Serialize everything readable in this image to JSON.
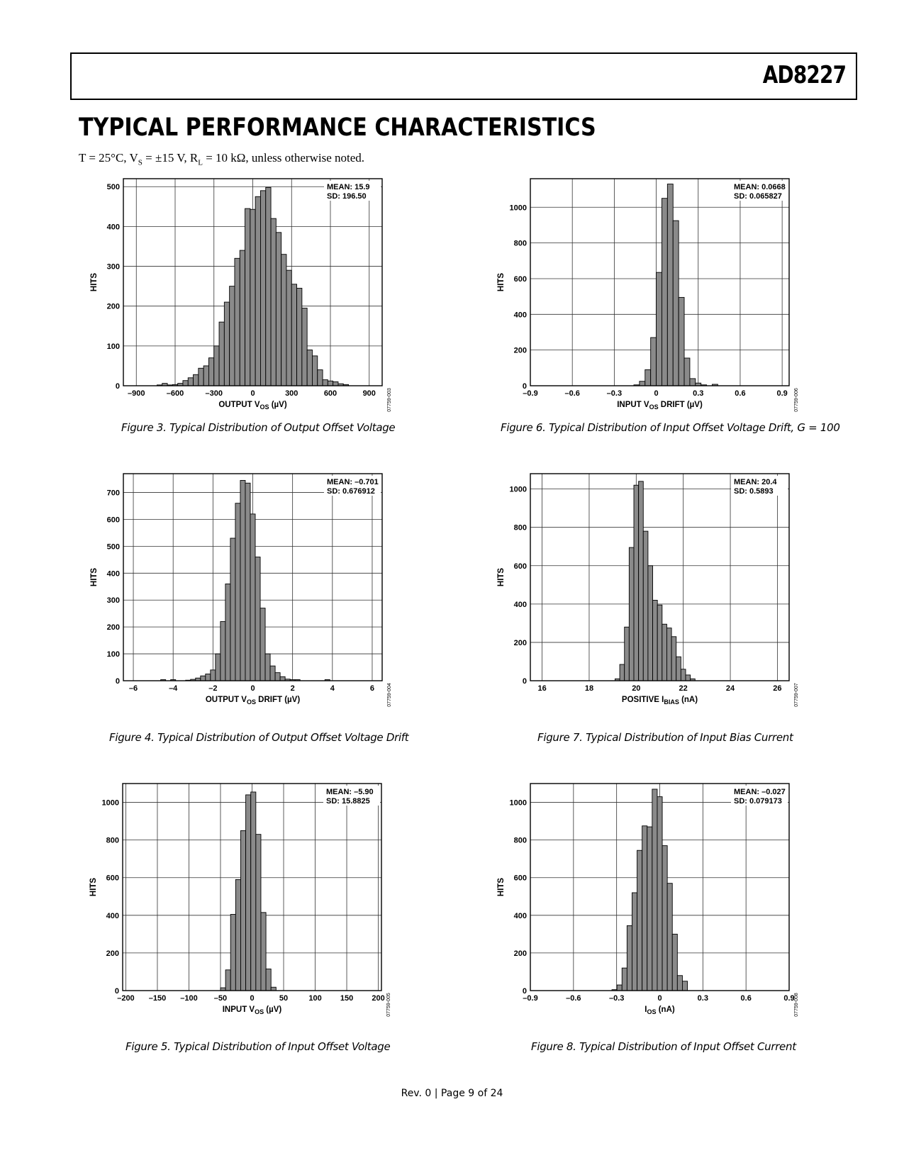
{
  "header": {
    "part_number": "AD8227"
  },
  "section_title": "TYPICAL PERFORMANCE CHARACTERISTICS",
  "conditions": {
    "t": "T = 25°C, V",
    "vs_sub": "S",
    "vs_val": " = ±15 V, R",
    "rl_sub": "L",
    "rl_val": " = 10 kΩ, unless otherwise noted."
  },
  "footer": "Rev. 0 | Page 9 of 24",
  "chart_data": [
    {
      "id": "fig3",
      "type": "bar",
      "caption": "Figure 3. Typical Distribution of Output Offset Voltage",
      "xlabel_main": "OUTPUT V",
      "xlabel_sub": "OS",
      "xlabel_tail": " (µV)",
      "ylabel": "HITS",
      "xlim": [
        -1000,
        1000
      ],
      "ylim": [
        0,
        520
      ],
      "xticks": [
        -900,
        -600,
        -300,
        0,
        300,
        600,
        900
      ],
      "xtick_labels": [
        "–900",
        "–600",
        "–300",
        "0",
        "300",
        "600",
        "900"
      ],
      "yticks": [
        0,
        100,
        200,
        300,
        400,
        500
      ],
      "ytick_labels": [
        "0",
        "100",
        "200",
        "300",
        "400",
        "500"
      ],
      "mean_label": "MEAN: 15.9",
      "sd_label": "SD: 196.50",
      "code": "07759-003",
      "bin_width": 40,
      "bin_centers": [
        -720,
        -680,
        -640,
        -600,
        -560,
        -520,
        -480,
        -440,
        -400,
        -360,
        -320,
        -280,
        -240,
        -200,
        -160,
        -120,
        -80,
        -40,
        0,
        40,
        80,
        120,
        160,
        200,
        240,
        280,
        320,
        360,
        400,
        440,
        480,
        520,
        560,
        600,
        640,
        680,
        720
      ],
      "values": [
        2,
        6,
        2,
        3,
        6,
        13,
        20,
        28,
        44,
        50,
        70,
        100,
        160,
        210,
        250,
        320,
        340,
        445,
        443,
        475,
        490,
        498,
        420,
        385,
        330,
        290,
        255,
        245,
        195,
        90,
        75,
        40,
        15,
        12,
        10,
        5,
        3
      ]
    },
    {
      "id": "fig4",
      "type": "bar",
      "caption": "Figure 4. Typical Distribution of Output Offset Voltage Drift",
      "xlabel_main": "OUTPUT V",
      "xlabel_sub": "OS",
      "xlabel_tail": " DRIFT (µV)",
      "ylabel": "HITS",
      "xlim": [
        -6.5,
        6.5
      ],
      "ylim": [
        0,
        770
      ],
      "xticks": [
        -6,
        -4,
        -2,
        0,
        2,
        4,
        6
      ],
      "xtick_labels": [
        "–6",
        "–4",
        "–2",
        "0",
        "2",
        "4",
        "6"
      ],
      "yticks": [
        0,
        100,
        200,
        300,
        400,
        500,
        600,
        700
      ],
      "ytick_labels": [
        "0",
        "100",
        "200",
        "300",
        "400",
        "500",
        "600",
        "700"
      ],
      "mean_label": "MEAN: –0.701",
      "sd_label": "SD: 0.676912",
      "code": "07759-004",
      "bin_width": 0.25,
      "bin_centers": [
        -4.5,
        -4.0,
        -3.25,
        -3.0,
        -2.75,
        -2.5,
        -2.25,
        -2.0,
        -1.75,
        -1.5,
        -1.25,
        -1.0,
        -0.75,
        -0.5,
        -0.25,
        0.0,
        0.25,
        0.5,
        0.75,
        1.0,
        1.25,
        1.5,
        1.75,
        2.0,
        2.25,
        3.75
      ],
      "values": [
        4,
        4,
        2,
        5,
        10,
        18,
        25,
        40,
        100,
        220,
        360,
        530,
        660,
        745,
        735,
        620,
        460,
        270,
        100,
        55,
        30,
        15,
        6,
        4,
        4,
        4
      ]
    },
    {
      "id": "fig5",
      "type": "bar",
      "caption": "Figure 5. Typical Distribution of Input Offset Voltage",
      "xlabel_main": "INPUT V",
      "xlabel_sub": "OS",
      "xlabel_tail": " (µV)",
      "ylabel": "HITS",
      "xlim": [
        -205,
        205
      ],
      "ylim": [
        0,
        1100
      ],
      "xticks": [
        -200,
        -150,
        -100,
        -50,
        0,
        50,
        100,
        150,
        200
      ],
      "xtick_labels": [
        "–200",
        "–150",
        "–100",
        "–50",
        "0",
        "50",
        "100",
        "150",
        "200"
      ],
      "yticks": [
        0,
        200,
        400,
        600,
        800,
        1000
      ],
      "ytick_labels": [
        "0",
        "200",
        "400",
        "600",
        "800",
        "1000"
      ],
      "mean_label": "MEAN: –5.90",
      "sd_label": "SD: 15.8825",
      "code": "07759-005",
      "bin_width": 8,
      "bin_centers": [
        -46,
        -38,
        -30,
        -22,
        -14,
        -6,
        2,
        10,
        18,
        26,
        34
      ],
      "values": [
        15,
        110,
        405,
        590,
        850,
        1040,
        1055,
        830,
        415,
        115,
        18
      ]
    },
    {
      "id": "fig6",
      "type": "bar",
      "caption": "Figure 6. Typical Distribution of Input Offset Voltage Drift, G = 100",
      "xlabel_main": "INPUT V",
      "xlabel_sub": "OS",
      "xlabel_tail": " DRIFT (µV)",
      "ylabel": "HITS",
      "xlim": [
        -0.9,
        0.95
      ],
      "ylim": [
        0,
        1160
      ],
      "xticks": [
        -0.9,
        -0.6,
        -0.3,
        0,
        0.3,
        0.6,
        0.9
      ],
      "xtick_labels": [
        "–0.9",
        "–0.6",
        "–0.3",
        "0",
        "0.3",
        "0.6",
        "0.9"
      ],
      "yticks": [
        0,
        200,
        400,
        600,
        800,
        1000
      ],
      "ytick_labels": [
        "0",
        "200",
        "400",
        "600",
        "800",
        "1000"
      ],
      "mean_label": "MEAN: 0.0668",
      "sd_label": "SD: 0.065827",
      "code": "07759-006",
      "bin_width": 0.04,
      "bin_centers": [
        -0.14,
        -0.1,
        -0.06,
        -0.02,
        0.02,
        0.06,
        0.1,
        0.14,
        0.18,
        0.22,
        0.26,
        0.3,
        0.34,
        0.42
      ],
      "values": [
        5,
        25,
        90,
        270,
        635,
        1050,
        1130,
        925,
        495,
        155,
        40,
        15,
        5,
        8
      ]
    },
    {
      "id": "fig7",
      "type": "bar",
      "caption": "Figure 7. Typical Distribution of Input Bias Current",
      "xlabel_main": "POSITIVE I",
      "xlabel_sub": "BIAS",
      "xlabel_tail": " (nA)",
      "ylabel": "HITS",
      "xlim": [
        15.5,
        26.5
      ],
      "ylim": [
        0,
        1080
      ],
      "xticks": [
        16,
        18,
        20,
        22,
        24,
        26
      ],
      "xtick_labels": [
        "16",
        "18",
        "20",
        "22",
        "24",
        "26"
      ],
      "yticks": [
        0,
        200,
        400,
        600,
        800,
        1000
      ],
      "ytick_labels": [
        "0",
        "200",
        "400",
        "600",
        "800",
        "1000"
      ],
      "mean_label": "MEAN: 20.4",
      "sd_label": "SD: 0.5893",
      "code": "07759-007",
      "bin_width": 0.2,
      "bin_centers": [
        19.2,
        19.4,
        19.6,
        19.8,
        20.0,
        20.2,
        20.4,
        20.6,
        20.8,
        21.0,
        21.2,
        21.4,
        21.6,
        21.8,
        22.0,
        22.2,
        22.4
      ],
      "values": [
        10,
        85,
        280,
        695,
        1020,
        1040,
        780,
        600,
        420,
        395,
        295,
        275,
        230,
        125,
        60,
        30,
        10
      ]
    },
    {
      "id": "fig8",
      "type": "bar",
      "caption": "Figure 8. Typical Distribution of Input Offset Current",
      "xlabel_main": "I",
      "xlabel_sub": "OS",
      "xlabel_tail": " (nA)",
      "ylabel": "HITS",
      "xlim": [
        -0.9,
        0.9
      ],
      "ylim": [
        0,
        1100
      ],
      "xticks": [
        -0.9,
        -0.6,
        -0.3,
        0,
        0.3,
        0.6,
        0.9
      ],
      "xtick_labels": [
        "–0.9",
        "–0.6",
        "–0.3",
        "0",
        "0.3",
        "0.6",
        "0.9"
      ],
      "yticks": [
        0,
        200,
        400,
        600,
        800,
        1000
      ],
      "ytick_labels": [
        "0",
        "200",
        "400",
        "600",
        "800",
        "1000"
      ],
      "mean_label": "MEAN: –0.027",
      "sd_label": "SD: 0.079173",
      "code": "07759-008",
      "bin_width": 0.035,
      "bin_centers": [
        -0.315,
        -0.28,
        -0.245,
        -0.21,
        -0.175,
        -0.14,
        -0.105,
        -0.07,
        -0.035,
        0.0,
        0.035,
        0.07,
        0.105,
        0.14,
        0.175
      ],
      "values": [
        5,
        30,
        120,
        345,
        520,
        745,
        875,
        870,
        1070,
        1030,
        770,
        570,
        300,
        80,
        50
      ]
    }
  ]
}
